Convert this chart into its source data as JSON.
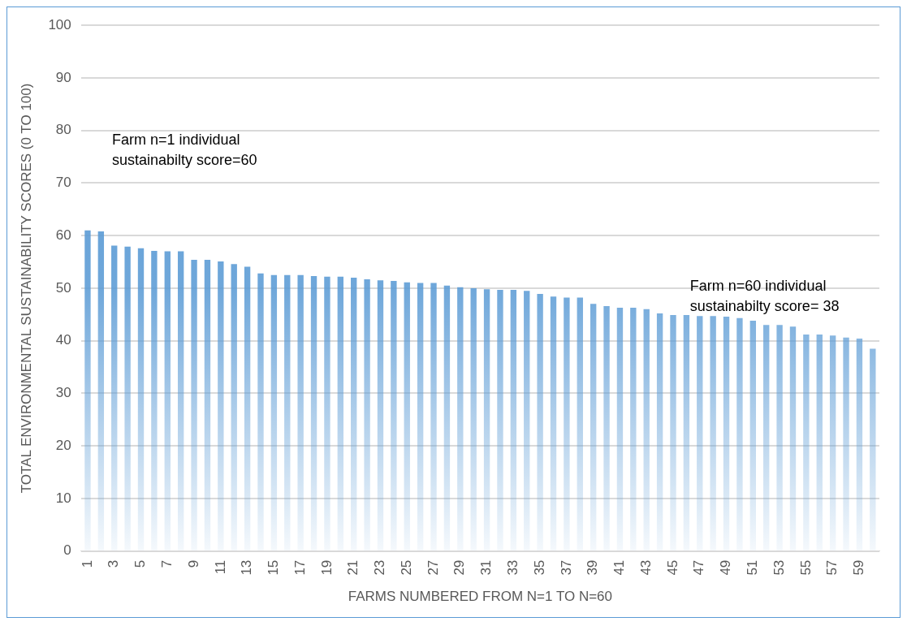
{
  "chart_data": {
    "type": "bar",
    "categories": [
      "1",
      null,
      "3",
      null,
      "5",
      null,
      "7",
      null,
      "9",
      null,
      "11",
      null,
      "13",
      null,
      "15",
      null,
      "17",
      null,
      "19",
      null,
      "21",
      null,
      "23",
      null,
      "25",
      null,
      "27",
      null,
      "29",
      null,
      "31",
      null,
      "33",
      null,
      "35",
      null,
      "37",
      null,
      "39",
      null,
      "41",
      null,
      "43",
      null,
      "45",
      null,
      "47",
      null,
      "49",
      null,
      "51",
      null,
      "53",
      null,
      "55",
      null,
      "57",
      null,
      "59",
      null
    ],
    "values": [
      61,
      60.8,
      58.1,
      57.9,
      57.6,
      57.1,
      57,
      57,
      55.4,
      55.4,
      55.1,
      54.6,
      54.1,
      52.8,
      52.5,
      52.5,
      52.5,
      52.3,
      52.2,
      52.2,
      52,
      51.7,
      51.5,
      51.4,
      51.1,
      51,
      51,
      50.5,
      50.2,
      50,
      49.8,
      49.7,
      49.7,
      49.5,
      48.9,
      48.4,
      48.2,
      48.2,
      47,
      46.6,
      46.3,
      46.3,
      46,
      45.2,
      44.9,
      44.9,
      44.7,
      44.7,
      44.6,
      44.3,
      43.8,
      43,
      43,
      42.7,
      41.2,
      41.2,
      41,
      40.6,
      40.4,
      38.5
    ],
    "color": "#5b9bd5",
    "xlabel": "FARMS NUMBERED FROM N=1 TO N=60",
    "ylabel": "TOTAL ENVIRONMENTAL SUSTAINABILITY SCORES (0 TO 100)",
    "ylim": [
      0,
      100
    ],
    "yticks": [
      0,
      10,
      20,
      30,
      40,
      50,
      60,
      70,
      80,
      90,
      100
    ],
    "grid": "y",
    "legend": false,
    "annotations": [
      "Farm n=1 individual sustainabilty score=60",
      "Farm n=60 individual sustainabilty score= 38"
    ]
  }
}
